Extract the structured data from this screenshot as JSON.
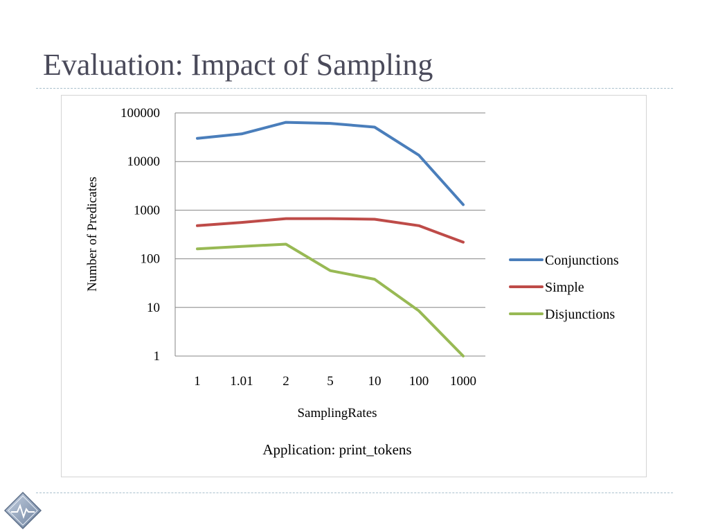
{
  "slide": {
    "title": "Evaluation: Impact of Sampling",
    "logo_icon": "heartbeat-diamond-icon"
  },
  "chart_data": {
    "type": "line",
    "title": "",
    "caption": "Application: print_tokens",
    "xlabel": "SamplingRates",
    "ylabel": "Number of Predicates",
    "yscale": "log",
    "ylim": [
      1,
      100000
    ],
    "yticks": [
      1,
      10,
      100,
      1000,
      10000,
      100000
    ],
    "ytick_labels": [
      "1",
      "10",
      "100",
      "1000",
      "10000",
      "100000"
    ],
    "categories": [
      "1",
      "1.01",
      "2",
      "5",
      "10",
      "100",
      "1000"
    ],
    "grid": true,
    "legend_position": "right",
    "series": [
      {
        "name": "Conjunctions",
        "color": "#4a7ebb",
        "values": [
          30000,
          37000,
          64000,
          61000,
          51000,
          13500,
          1300
        ]
      },
      {
        "name": "Simple",
        "color": "#be4b48",
        "values": [
          480,
          560,
          670,
          670,
          650,
          480,
          220
        ]
      },
      {
        "name": "Disjunctions",
        "color": "#98b954",
        "values": [
          160,
          180,
          200,
          57,
          38,
          8.5,
          1
        ]
      }
    ]
  }
}
